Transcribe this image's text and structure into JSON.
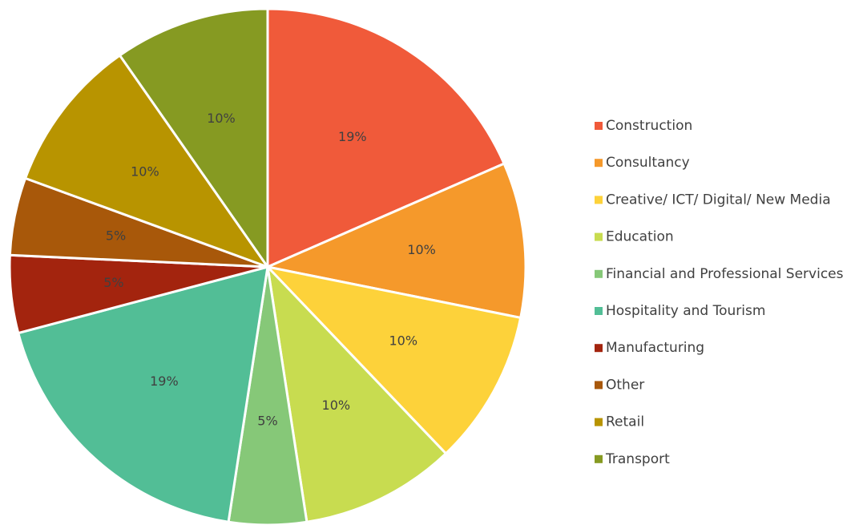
{
  "chart_data": {
    "type": "pie",
    "categories": [
      "Construction",
      "Consultancy",
      "Creative/ ICT/ Digital/ New Media",
      "Education",
      "Financial and Professional Services",
      "Hospitality and Tourism",
      "Manufacturing",
      "Other",
      "Retail",
      "Transport"
    ],
    "values": [
      19,
      10,
      10,
      10,
      5,
      19,
      5,
      5,
      10,
      10
    ],
    "value_labels": [
      "19%",
      "10%",
      "10%",
      "10%",
      "5%",
      "19%",
      "5%",
      "5%",
      "10%",
      "10%"
    ],
    "colors": [
      "#f05a3a",
      "#f5992b",
      "#fdd23a",
      "#c8dc50",
      "#86c878",
      "#52be96",
      "#a3240e",
      "#a8580a",
      "#b89400",
      "#869a22"
    ],
    "legend": "right"
  }
}
